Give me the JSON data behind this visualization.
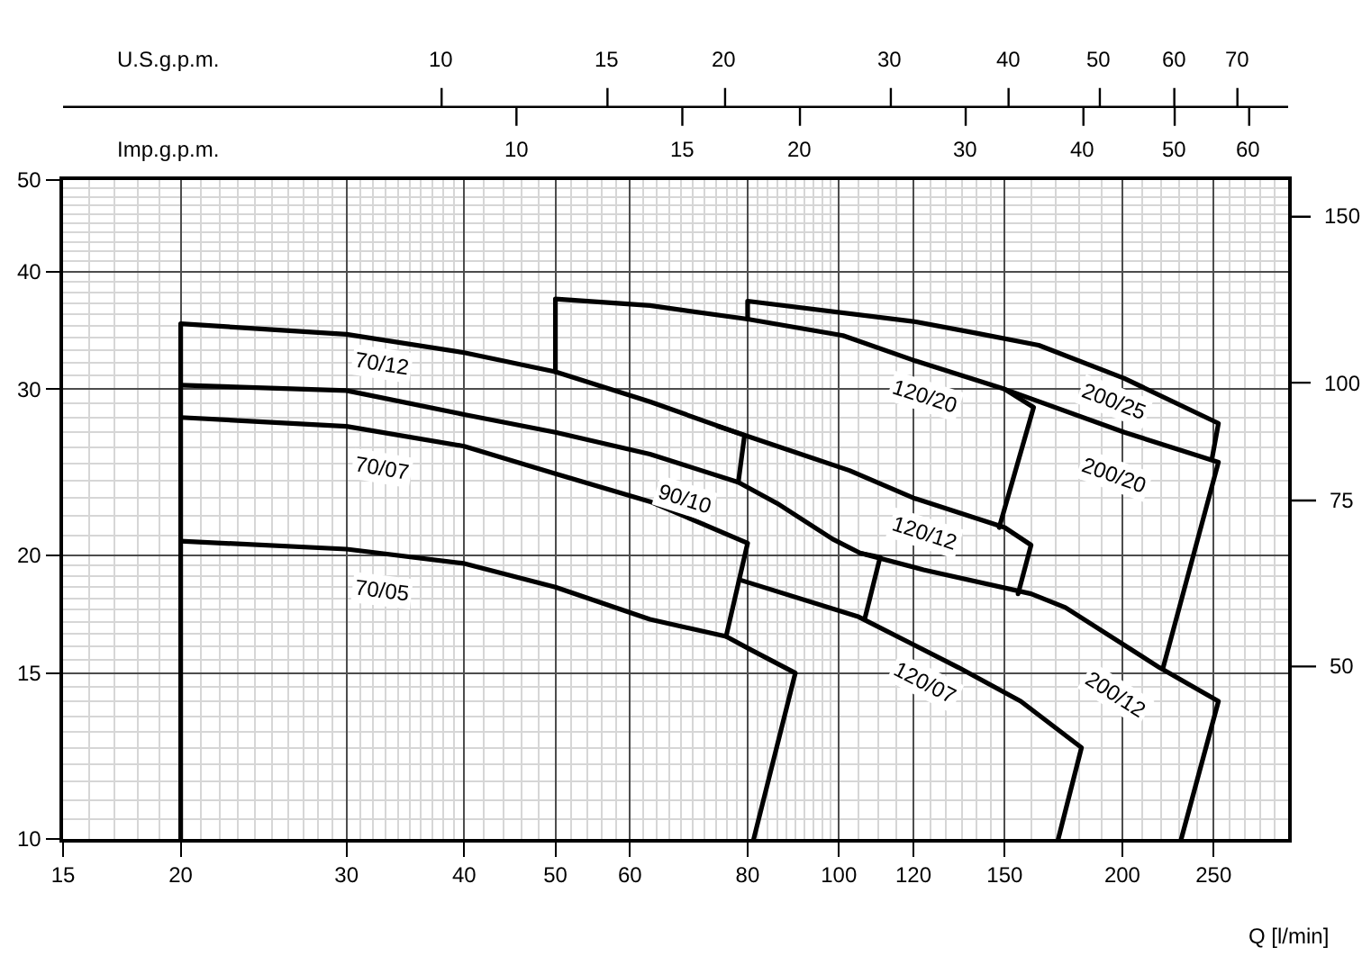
{
  "chart_data": {
    "type": "line",
    "xlabel": "Q [l/min]",
    "xlim": [
      15,
      300
    ],
    "xticks": [
      15,
      20,
      30,
      40,
      50,
      60,
      80,
      100,
      120,
      150,
      200,
      250
    ],
    "ylim": [
      10,
      50
    ],
    "yticks": [
      10,
      15,
      20,
      30,
      40,
      50
    ],
    "log": "xy",
    "grid": true,
    "line_style": "solid",
    "series": [
      {
        "name": "70/12",
        "color": "#000000",
        "x": [
          20,
          20,
          30,
          40,
          50,
          63,
          79.4,
          78.2
        ],
        "values": [
          10,
          35.2,
          34.3,
          32.8,
          31.3,
          29.1,
          26.8,
          23.9
        ]
      },
      {
        "name": "90/10",
        "color": "#000000",
        "x": [
          20,
          30,
          40,
          50,
          63,
          78.2,
          86,
          98.5,
          105.4,
          110.6,
          106.5
        ],
        "values": [
          30.3,
          29.9,
          28.2,
          27.0,
          25.6,
          23.9,
          22.7,
          20.8,
          20.1,
          19.9,
          17.1
        ]
      },
      {
        "name": "70/07",
        "color": "#000000",
        "x": [
          20,
          30,
          40,
          50,
          63,
          80,
          75.9
        ],
        "values": [
          28.0,
          27.4,
          26.1,
          24.4,
          22.8,
          20.6,
          16.4
        ]
      },
      {
        "name": "70/05",
        "color": "#000000",
        "x": [
          20,
          30,
          40,
          50,
          63,
          75.9,
          80.4,
          89.9,
          81.2
        ],
        "values": [
          20.7,
          20.3,
          19.6,
          18.5,
          17.1,
          16.4,
          15.9,
          15.0,
          10
        ]
      },
      {
        "name": "120/20",
        "color": "#000000",
        "x": [
          50,
          50,
          63,
          80,
          101,
          120,
          150,
          161,
          148
        ],
        "values": [
          31.3,
          37.4,
          36.8,
          35.6,
          34.2,
          32.2,
          30.0,
          28.7,
          21.4
        ]
      },
      {
        "name": "200/25",
        "color": "#000000",
        "x": [
          80,
          80,
          120,
          140,
          163,
          201,
          253,
          249
        ],
        "values": [
          35.6,
          37.2,
          35.4,
          34.4,
          33.4,
          30.8,
          27.6,
          25.3
        ]
      },
      {
        "name": "200/20",
        "color": "#000000",
        "x": [
          150,
          201,
          253,
          221
        ],
        "values": [
          30.0,
          27.0,
          25.1,
          15.2
        ]
      },
      {
        "name": "120/12",
        "color": "#000000",
        "x": [
          74.4,
          102.6,
          120,
          150,
          160,
          155
        ],
        "values": [
          27.4,
          24.6,
          23.0,
          21.4,
          20.5,
          18.2
        ]
      },
      {
        "name": "120/07",
        "color": "#000000",
        "x": [
          78.9,
          105,
          134,
          156,
          181,
          171
        ],
        "values": [
          18.8,
          17.2,
          15.2,
          14.0,
          12.5,
          10
        ]
      },
      {
        "name": "200/12",
        "color": "#000000",
        "x": [
          105.4,
          123,
          160,
          174,
          219,
          253,
          231
        ],
        "values": [
          20.1,
          19.3,
          18.2,
          17.6,
          15.2,
          14.0,
          10
        ]
      }
    ],
    "annotations": [
      "U.S.g.p.m.",
      "10",
      "15",
      "20",
      "30",
      "40",
      "50",
      "60",
      "70",
      "Imp.g.p.m.",
      "10",
      "15",
      "20",
      "30",
      "40",
      "50",
      "60",
      "150",
      "100",
      "75",
      "50"
    ]
  }
}
